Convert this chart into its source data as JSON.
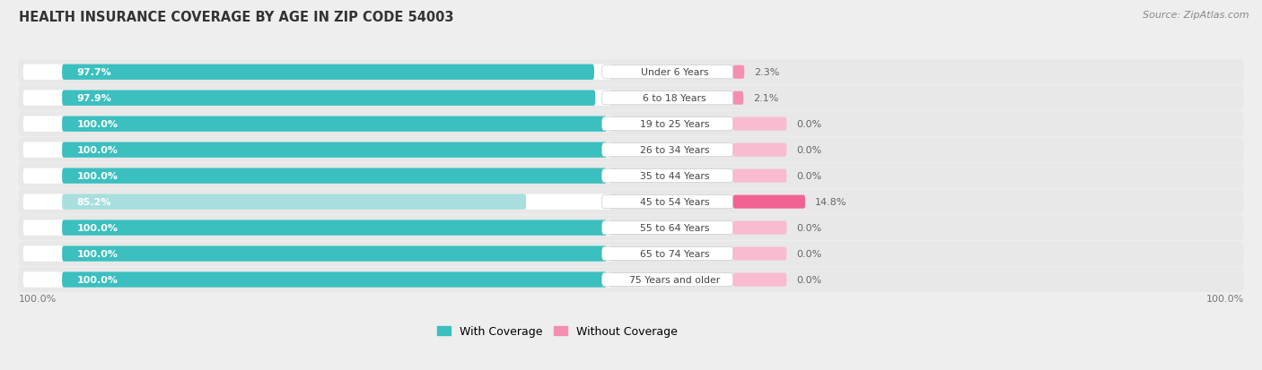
{
  "title": "HEALTH INSURANCE COVERAGE BY AGE IN ZIP CODE 54003",
  "source": "Source: ZipAtlas.com",
  "categories": [
    "Under 6 Years",
    "6 to 18 Years",
    "19 to 25 Years",
    "26 to 34 Years",
    "35 to 44 Years",
    "45 to 54 Years",
    "55 to 64 Years",
    "65 to 74 Years",
    "75 Years and older"
  ],
  "with_coverage": [
    97.7,
    97.9,
    100.0,
    100.0,
    100.0,
    85.2,
    100.0,
    100.0,
    100.0
  ],
  "without_coverage": [
    2.3,
    2.1,
    0.0,
    0.0,
    0.0,
    14.8,
    0.0,
    0.0,
    0.0
  ],
  "color_with": "#3bbfbf",
  "color_with_light": "#a8dede",
  "color_without": "#f48fb1",
  "color_without_large": "#f06292",
  "color_without_stub": "#f8bbd0",
  "bg_color": "#eeeeee",
  "row_bg": "#e8e8e8",
  "bar_bg": "#ffffff",
  "legend_with": "With Coverage",
  "legend_without": "Without Coverage",
  "x_left_label": "100.0%",
  "x_right_label": "100.0%"
}
